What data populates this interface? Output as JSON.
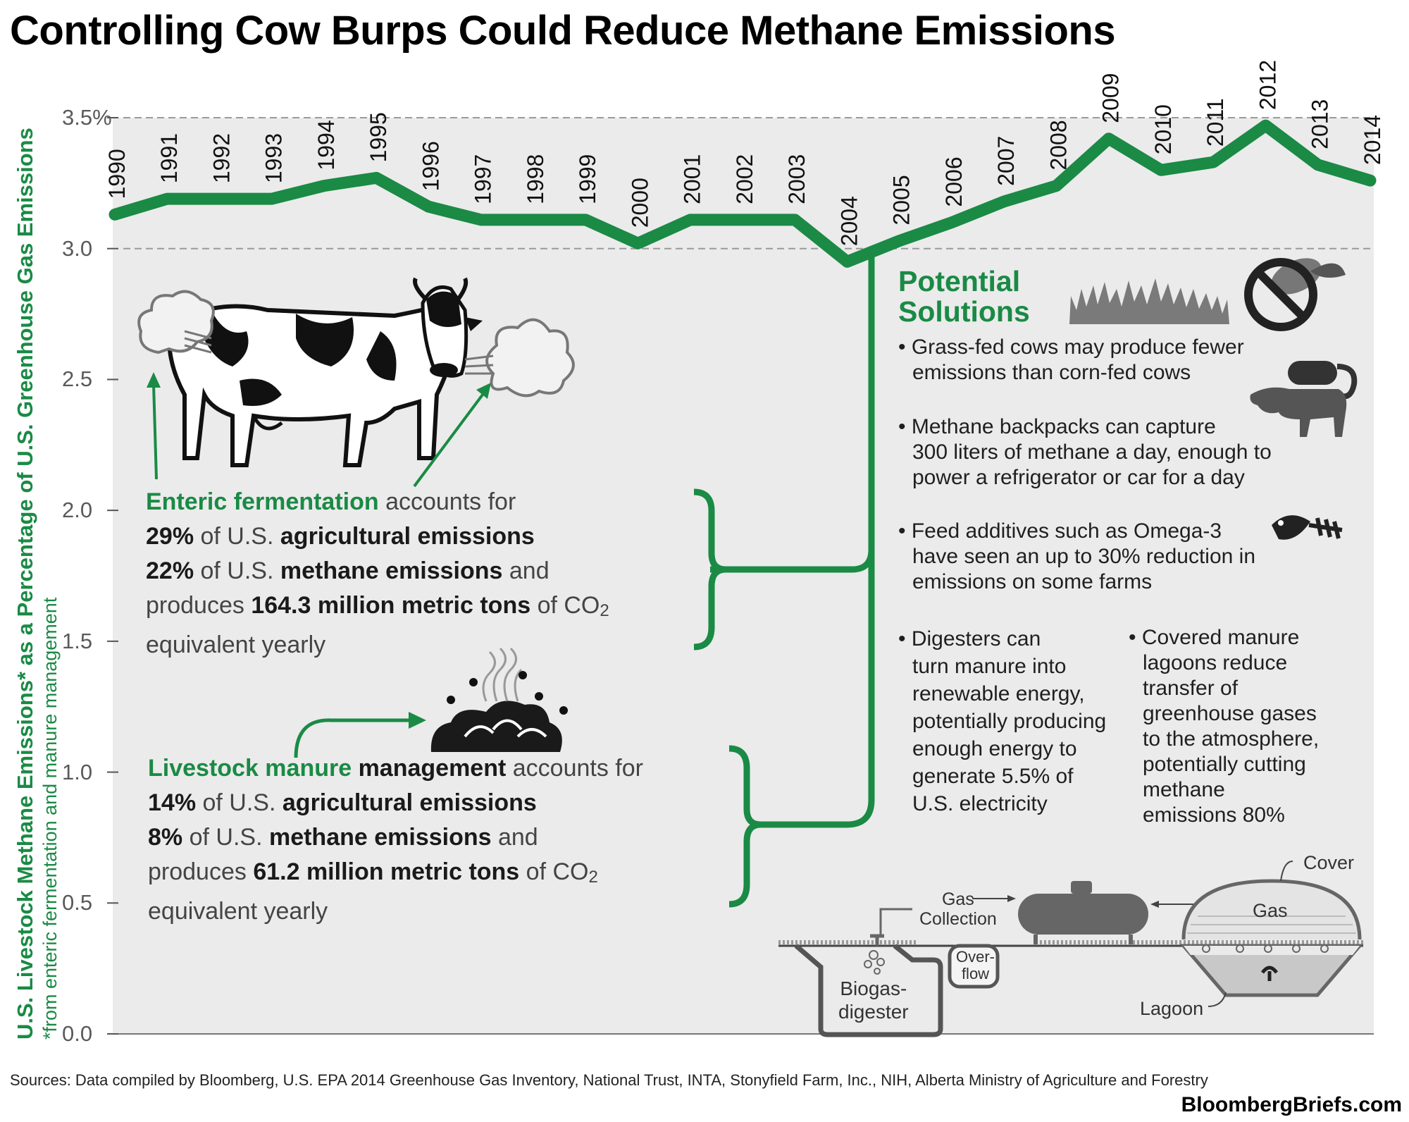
{
  "title": "Controlling Cow Burps Could Reduce Methane Emissions",
  "chart_data": {
    "type": "line",
    "x": [
      1990,
      1991,
      1992,
      1993,
      1994,
      1995,
      1996,
      1997,
      1998,
      1999,
      2000,
      2001,
      2002,
      2003,
      2004,
      2005,
      2006,
      2007,
      2008,
      2009,
      2010,
      2011,
      2012,
      2013,
      2014
    ],
    "x_labels": [
      "1990",
      "1991",
      "1992",
      "1993",
      "1994",
      "1995",
      "1996",
      "1997",
      "1998",
      "1999",
      "2000",
      "2001",
      "2002",
      "2003",
      "2004",
      "2005",
      "2006",
      "2007",
      "2008",
      "2009",
      "2010",
      "2011",
      "2012",
      "2013",
      "2014"
    ],
    "series": [
      {
        "values": [
          3.13,
          3.19,
          3.19,
          3.19,
          3.24,
          3.27,
          3.16,
          3.11,
          3.11,
          3.11,
          3.02,
          3.11,
          3.11,
          3.11,
          2.95,
          3.03,
          3.1,
          3.18,
          3.24,
          3.42,
          3.3,
          3.33,
          3.47,
          3.32,
          3.26
        ]
      }
    ],
    "ylabel": "U.S. Livestock Methane Emissions* as a Percentage of U.S. Greenhouse Gas Emissions",
    "ylabel_note": "*from enteric fermentation and manure management",
    "ylim": [
      0,
      3.5
    ],
    "y_ticks": [
      "0.0",
      "0.5",
      "1.0",
      "1.5",
      "2.0",
      "2.5",
      "3.0",
      "3.5%"
    ],
    "dashed_gridlines": [
      3.0,
      3.5
    ],
    "line_color": "#1a8a45"
  },
  "enteric": {
    "l1_green": "Enteric fermentation",
    "l1_rest": " accounts for",
    "l2_pct": "29%",
    "l2_mid": " of U.S. ",
    "l2_bold": "agricultural emissions",
    "l3_pct": "22%",
    "l3_mid": " of U.S. ",
    "l3_bold": "methane emissions",
    "l3_end": " and",
    "l4_start": "produces ",
    "l4_bold": "164.3 million metric tons",
    "l4_end": " of CO",
    "l4_sub": "2",
    "l5": "equivalent yearly"
  },
  "manure": {
    "l1_green": "Livestock manure",
    "l1_bold": " management",
    "l1_rest": " accounts for",
    "l2_pct": "14%",
    "l2_mid": " of U.S. ",
    "l2_bold": "agricultural emissions",
    "l3_pct": "8%",
    "l3_mid": " of U.S. ",
    "l3_bold": "methane emissions",
    "l3_end": " and",
    "l4_start": "produces ",
    "l4_bold": "61.2 million metric tons",
    "l4_end": " of CO",
    "l4_sub": "2",
    "l5": "equivalent yearly"
  },
  "solutions": {
    "heading_1": "Potential",
    "heading_2": "Solutions",
    "s1_1": "• Grass-fed cows may produce fewer",
    "s1_2": "emissions than corn-fed cows",
    "s2_1": "• Methane backpacks can capture",
    "s2_2": "300 liters of methane a day, enough to",
    "s2_3": "power a refrigerator or car for a day",
    "s3_1": "• Feed additives such as Omega-3",
    "s3_2": "have seen an up to 30% reduction in",
    "s3_3": "emissions on some farms",
    "s4_1": "• Digesters can",
    "s4_2": "turn manure into",
    "s4_3": "renewable energy,",
    "s4_4": "potentially producing",
    "s4_5": "enough energy to",
    "s4_6": "generate 5.5% of",
    "s4_7": "U.S. electricity",
    "s5_1": "• Covered manure",
    "s5_2": "lagoons reduce",
    "s5_3": "transfer of",
    "s5_4": "greenhouse gases",
    "s5_5": "to the atmosphere,",
    "s5_6": "potentially  cutting",
    "s5_7": "methane",
    "s5_8": "emissions 80%"
  },
  "diagram": {
    "cover": "Cover",
    "gas": "Gas",
    "gas_collection_1": "Gas",
    "gas_collection_2": "Collection",
    "overflow_1": "Over-",
    "overflow_2": "flow",
    "digester_1": "Biogas-",
    "digester_2": "digester",
    "lagoon": "Lagoon"
  },
  "footer": {
    "sources": "Sources: Data compiled by Bloomberg, U.S. EPA 2014 Greenhouse Gas Inventory, National Trust, INTA, Stonyfield Farm, Inc., NIH, Alberta Ministry of Agriculture and Forestry",
    "brand": "BloombergBriefs.com"
  }
}
